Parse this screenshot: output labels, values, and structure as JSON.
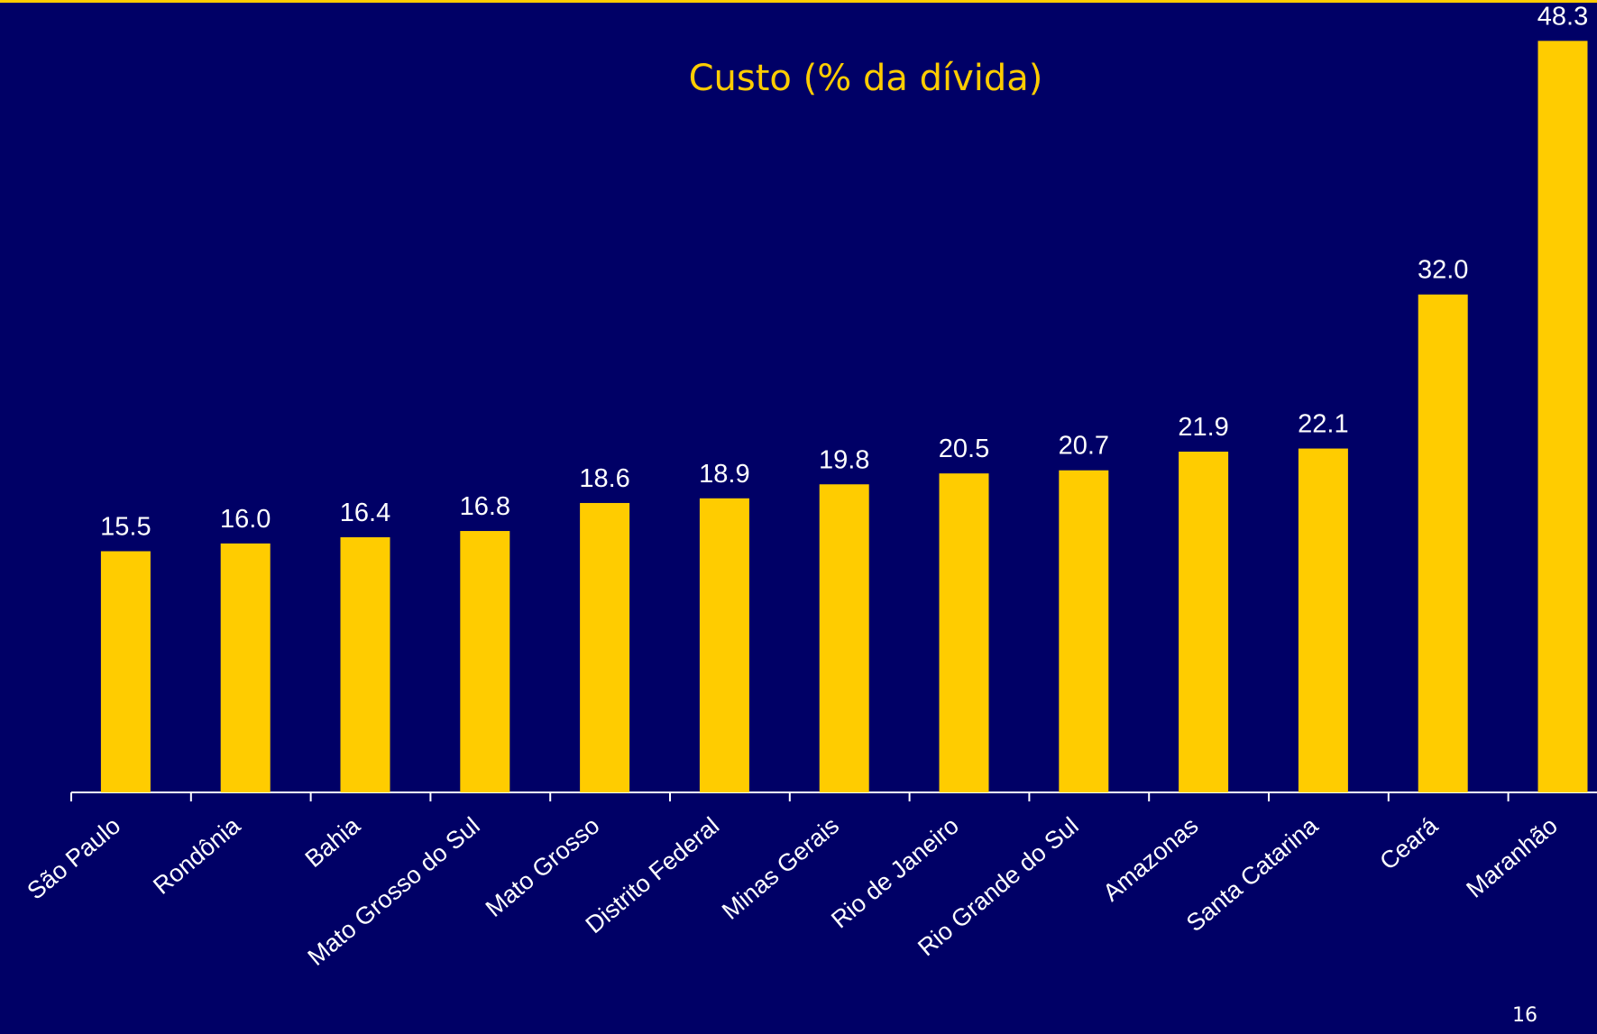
{
  "chart_data": {
    "type": "bar",
    "title": "Custo (% da dívida)",
    "categories": [
      "São Paulo",
      "Rondônia",
      "Bahia",
      "Mato Grosso do Sul",
      "Mato Grosso",
      "Distrito Federal",
      "Minas Gerais",
      "Rio de Janeiro",
      "Rio Grande do Sul",
      "Amazonas",
      "Santa Catarina",
      "Ceará",
      "Maranhão"
    ],
    "values": [
      15.5,
      16.0,
      16.4,
      16.8,
      18.6,
      18.9,
      19.8,
      20.5,
      20.7,
      21.9,
      22.1,
      32.0,
      48.3
    ],
    "value_labels": [
      "15.5",
      "16.0",
      "16.4",
      "16.8",
      "18.6",
      "18.9",
      "19.8",
      "20.5",
      "20.7",
      "21.9",
      "22.1",
      "32.0",
      "48.3"
    ],
    "color": "#ffcc00",
    "ylim": [
      0,
      50
    ]
  },
  "page_number": "16"
}
